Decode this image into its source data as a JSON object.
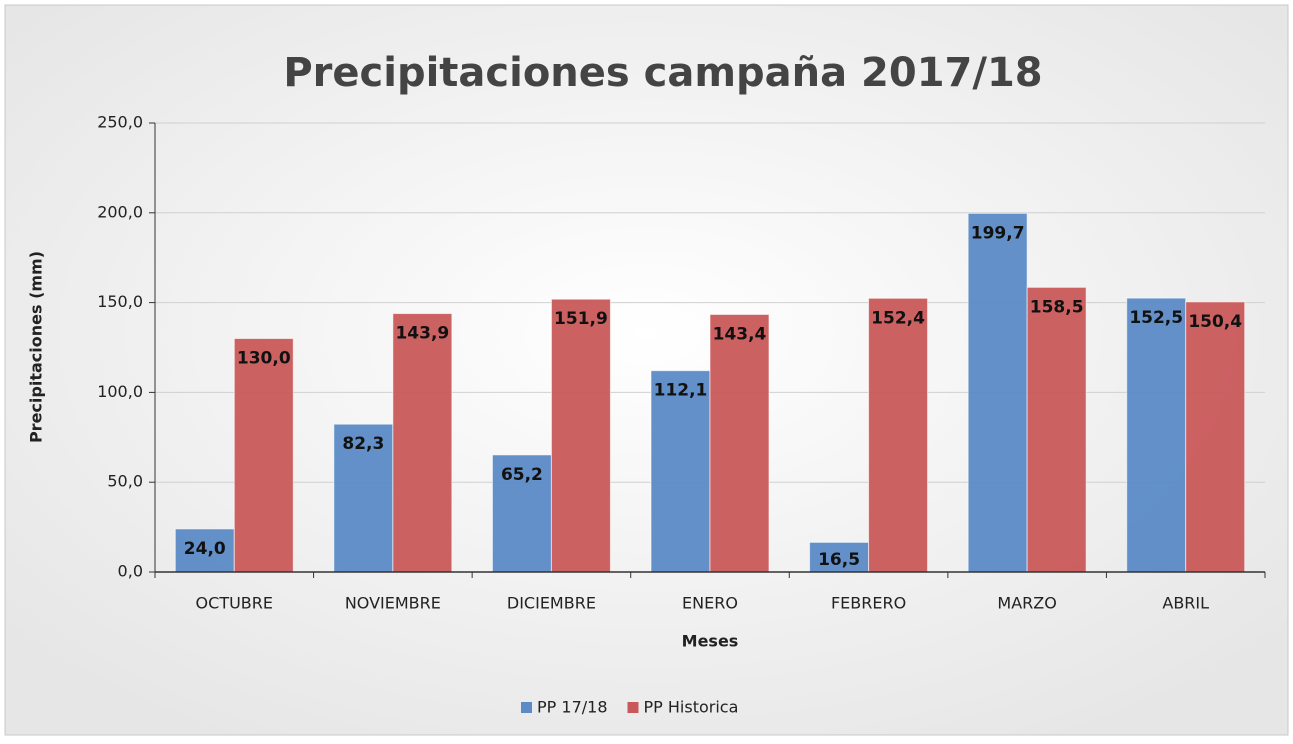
{
  "chart_data": {
    "type": "bar",
    "title": "Precipitaciones campaña 2017/18",
    "x_label": "Meses",
    "y_label": "Precipitaciones (mm)",
    "categories": [
      "OCTUBRE",
      "NOVIEMBRE",
      "DICIEMBRE",
      "ENERO",
      "FEBRERO",
      "MARZO",
      "ABRIL"
    ],
    "series": [
      {
        "name": "PP 17/18",
        "color": "#5b8ac6",
        "values": [
          24.0,
          82.3,
          65.2,
          112.1,
          16.5,
          199.7,
          152.5
        ],
        "value_labels": [
          "24,0",
          "82,3",
          "65,2",
          "112,1",
          "16,5",
          "199,7",
          "152,5"
        ]
      },
      {
        "name": "PP Historica",
        "color": "#c9585a",
        "values": [
          130.0,
          143.9,
          151.9,
          143.4,
          152.4,
          158.5,
          150.4
        ],
        "value_labels": [
          "130,0",
          "143,9",
          "151,9",
          "143,4",
          "152,4",
          "158,5",
          "150,4"
        ]
      }
    ],
    "ylim": [
      0,
      250
    ],
    "yticks": [
      {
        "value": 0,
        "label": "0,0"
      },
      {
        "value": 50,
        "label": "50,0"
      },
      {
        "value": 100,
        "label": "100,0"
      },
      {
        "value": 150,
        "label": "150,0"
      },
      {
        "value": 200,
        "label": "200,0"
      },
      {
        "value": 250,
        "label": "250,0"
      }
    ],
    "grid": true,
    "legend": "bottom"
  }
}
